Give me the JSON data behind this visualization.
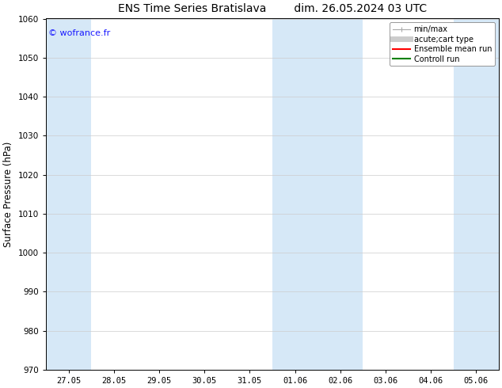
{
  "title": "ENS Time Series Bratislava        dim. 26.05.2024 03 UTC",
  "ylabel": "Surface Pressure (hPa)",
  "ylim": [
    970,
    1060
  ],
  "yticks": [
    970,
    980,
    990,
    1000,
    1010,
    1020,
    1030,
    1040,
    1050,
    1060
  ],
  "xtick_labels": [
    "27.05",
    "28.05",
    "29.05",
    "30.05",
    "31.05",
    "01.06",
    "02.06",
    "03.06",
    "04.06",
    "05.06"
  ],
  "xtick_positions": [
    0,
    1,
    2,
    3,
    4,
    5,
    6,
    7,
    8,
    9
  ],
  "watermark": "© wofrance.fr",
  "watermark_color": "#1a1aff",
  "bg_color": "#ffffff",
  "plot_bg_color": "#ffffff",
  "shaded_bands": [
    {
      "xmin": -0.5,
      "xmax": 0.5,
      "color": "#d6e8f7"
    },
    {
      "xmin": 4.5,
      "xmax": 6.5,
      "color": "#d6e8f7"
    },
    {
      "xmin": 8.5,
      "xmax": 9.5,
      "color": "#d6e8f7"
    }
  ],
  "legend_entries": [
    {
      "label": "min/max",
      "color": "#aaaaaa",
      "lw": 0.8,
      "style": "minmax"
    },
    {
      "label": "acute;cart type",
      "color": "#cccccc",
      "lw": 5,
      "style": "thick"
    },
    {
      "label": "Ensemble mean run",
      "color": "#ff0000",
      "lw": 1.5,
      "style": "line"
    },
    {
      "label": "Controll run",
      "color": "#008000",
      "lw": 1.5,
      "style": "line"
    }
  ],
  "title_fontsize": 10,
  "tick_fontsize": 7.5,
  "ylabel_fontsize": 8.5,
  "legend_fontsize": 7.0,
  "figsize": [
    6.34,
    4.9
  ],
  "dpi": 100
}
